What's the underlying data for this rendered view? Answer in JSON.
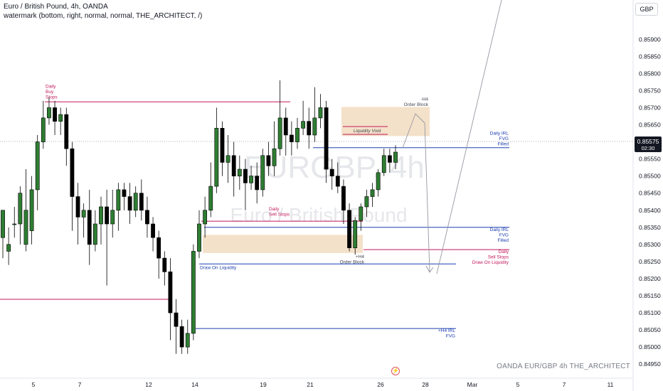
{
  "header": {
    "title": "Euro / British Pound, 4h, OANDA",
    "indicator": "watermark (bottom, right, normal, normal, THE_ARCHITECT, /)"
  },
  "currency_button": "GBP",
  "footer": "OANDA  EUR/GBP 4h  THE_ARCHITECT",
  "watermark": {
    "symbol": "EURGBP, 4h",
    "name": "Euro / British Pound"
  },
  "price_badge": {
    "price": "0.85575",
    "countdown": "02:30"
  },
  "colors": {
    "up": "#2e7d32",
    "down": "#000000",
    "red_line": "#c2185b",
    "blue_line": "#1e40af",
    "zone": "#f2dcc0",
    "axis_text": "#131722"
  },
  "chart_data": {
    "type": "candlestick",
    "y_axis": {
      "range": [
        0.8494,
        0.8599
      ],
      "ticks": [
        "0.85900",
        "0.85850",
        "0.85800",
        "0.85750",
        "0.85700",
        "0.85650",
        "0.85600",
        "0.85550",
        "0.85500",
        "0.85450",
        "0.85400",
        "0.85350",
        "0.85300",
        "0.85250",
        "0.85200",
        "0.85150",
        "0.85100",
        "0.85050",
        "0.85000",
        "0.84950"
      ]
    },
    "x_axis": {
      "ticks": [
        "5",
        "7",
        "12",
        "14",
        "19",
        "21",
        "26",
        "28",
        "Mar",
        "5",
        "7",
        "11"
      ]
    },
    "candles": [
      [
        0.8532,
        0.854,
        0.8536,
        0.8526
      ],
      [
        0.8528,
        0.853,
        0.8535,
        0.8524
      ],
      [
        0.8536,
        0.8536,
        0.8541,
        0.8532
      ],
      [
        0.8536,
        0.8545,
        0.8547,
        0.853
      ],
      [
        0.853,
        0.854,
        0.8552,
        0.8528
      ],
      [
        0.8534,
        0.8546,
        0.855,
        0.853
      ],
      [
        0.8546,
        0.856,
        0.8562,
        0.854
      ],
      [
        0.856,
        0.8567,
        0.8572,
        0.8558
      ],
      [
        0.8567,
        0.857,
        0.8573,
        0.8565
      ],
      [
        0.857,
        0.8566,
        0.8572,
        0.8562
      ],
      [
        0.8566,
        0.8568,
        0.857,
        0.8562
      ],
      [
        0.8568,
        0.8558,
        0.857,
        0.8553
      ],
      [
        0.8558,
        0.8544,
        0.856,
        0.8534
      ],
      [
        0.8544,
        0.8538,
        0.8548,
        0.853
      ],
      [
        0.8538,
        0.854,
        0.8542,
        0.8532
      ],
      [
        0.854,
        0.853,
        0.8546,
        0.8524
      ],
      [
        0.853,
        0.8536,
        0.854,
        0.8528
      ],
      [
        0.8536,
        0.8541,
        0.8544,
        0.853
      ],
      [
        0.8541,
        0.8536,
        0.8546,
        0.8518
      ],
      [
        0.8536,
        0.854,
        0.8546,
        0.8532
      ],
      [
        0.854,
        0.8546,
        0.8548,
        0.8534
      ],
      [
        0.8546,
        0.8544,
        0.8548,
        0.854
      ],
      [
        0.8544,
        0.854,
        0.8548,
        0.8536
      ],
      [
        0.854,
        0.8545,
        0.8547,
        0.8538
      ],
      [
        0.8545,
        0.854,
        0.8549,
        0.8537
      ],
      [
        0.854,
        0.8536,
        0.8544,
        0.8532
      ],
      [
        0.8536,
        0.8532,
        0.8538,
        0.8528
      ],
      [
        0.8532,
        0.8526,
        0.8534,
        0.852
      ],
      [
        0.8526,
        0.8522,
        0.8528,
        0.8518
      ],
      [
        0.8522,
        0.851,
        0.8526,
        0.8502
      ],
      [
        0.851,
        0.8506,
        0.8514,
        0.8498
      ],
      [
        0.8506,
        0.85,
        0.8508,
        0.8498
      ],
      [
        0.85,
        0.8504,
        0.8508,
        0.8498
      ],
      [
        0.8504,
        0.8528,
        0.853,
        0.8502
      ],
      [
        0.8528,
        0.8536,
        0.854,
        0.8526
      ],
      [
        0.8536,
        0.854,
        0.8544,
        0.8532
      ],
      [
        0.854,
        0.8547,
        0.8554,
        0.8538
      ],
      [
        0.8547,
        0.8564,
        0.857,
        0.8545
      ],
      [
        0.8564,
        0.8554,
        0.8566,
        0.855
      ],
      [
        0.8554,
        0.8556,
        0.8562,
        0.8548
      ],
      [
        0.8556,
        0.855,
        0.856,
        0.8544
      ],
      [
        0.855,
        0.8552,
        0.8556,
        0.8546
      ],
      [
        0.8552,
        0.8548,
        0.8555,
        0.854
      ],
      [
        0.8548,
        0.855,
        0.8553,
        0.8546
      ],
      [
        0.855,
        0.8546,
        0.8554,
        0.8542
      ],
      [
        0.8546,
        0.8556,
        0.8558,
        0.8544
      ],
      [
        0.8556,
        0.8553,
        0.856,
        0.855
      ],
      [
        0.8553,
        0.8558,
        0.8566,
        0.855
      ],
      [
        0.8558,
        0.8567,
        0.8578,
        0.8556
      ],
      [
        0.8567,
        0.8562,
        0.857,
        0.8556
      ],
      [
        0.8562,
        0.856,
        0.8566,
        0.8556
      ],
      [
        0.856,
        0.8564,
        0.8567,
        0.8558
      ],
      [
        0.8564,
        0.8566,
        0.8572,
        0.8562
      ],
      [
        0.8566,
        0.8562,
        0.857,
        0.8558
      ],
      [
        0.8562,
        0.8567,
        0.8576,
        0.856
      ],
      [
        0.8567,
        0.857,
        0.8574,
        0.8564
      ],
      [
        0.857,
        0.8552,
        0.8572,
        0.8548
      ],
      [
        0.8552,
        0.855,
        0.8555,
        0.8546
      ],
      [
        0.855,
        0.8547,
        0.8554,
        0.8545
      ],
      [
        0.8547,
        0.854,
        0.8549,
        0.8536
      ],
      [
        0.854,
        0.8529,
        0.8542,
        0.8528
      ],
      [
        0.8529,
        0.8537,
        0.8538,
        0.8527
      ],
      [
        0.8537,
        0.8541,
        0.8542,
        0.8534
      ],
      [
        0.8541,
        0.8544,
        0.8546,
        0.8538
      ],
      [
        0.8544,
        0.8546,
        0.8548,
        0.8541
      ],
      [
        0.8546,
        0.8551,
        0.8552,
        0.8544
      ],
      [
        0.8551,
        0.8556,
        0.8558,
        0.855
      ],
      [
        0.8556,
        0.8554,
        0.8558,
        0.8551
      ],
      [
        0.8554,
        0.8557,
        0.8559,
        0.8552
      ]
    ],
    "levels": [
      {
        "label": "Daily\nBuy\nStops",
        "price": 0.85717,
        "color": "red"
      },
      {
        "label": "Daily\nSell Stops",
        "price": 0.85368,
        "color": "red"
      },
      {
        "label": "Daily\nSell Stops\nDraw On Liquidity",
        "price": 0.85285,
        "color": "red"
      },
      {
        "label": "Daily IRL\nFVG\nFilled",
        "price": 0.85583,
        "color": "blue"
      },
      {
        "label": "Daily IRL\nFVG\nFilled",
        "price": 0.8535,
        "color": "blue"
      },
      {
        "label": "Draw On Liquidity",
        "price": 0.85243,
        "color": "blue"
      },
      {
        "label": "+H4 IRL\nFVG",
        "price": 0.85054,
        "color": "blue"
      }
    ],
    "zones": [
      {
        "label": "-H4\nOrder Block",
        "top": 0.85702,
        "bottom": 0.85617
      },
      {
        "label": "+H4\nOrder Block",
        "top": 0.85328,
        "bottom": 0.85275
      }
    ],
    "annotations": [
      "Liquidity Void"
    ]
  }
}
